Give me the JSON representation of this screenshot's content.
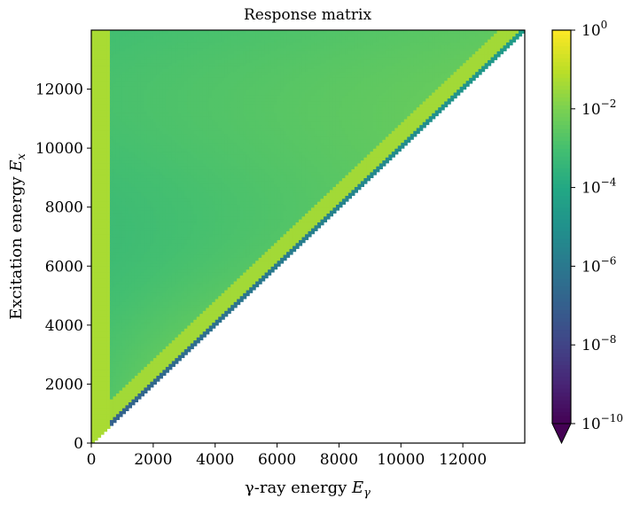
{
  "chart_data": {
    "type": "heatmap",
    "title": "Response matrix",
    "xlabel": "γ-ray energy Eγ",
    "ylabel": "Excitation energy Ex",
    "xlim": [
      0,
      14000
    ],
    "ylim": [
      0,
      14000
    ],
    "x_ticks": [
      0,
      2000,
      4000,
      6000,
      8000,
      10000,
      12000
    ],
    "x_tick_labels": [
      "0",
      "2000",
      "4000",
      "6000",
      "8000",
      "10000",
      "12000"
    ],
    "y_ticks": [
      0,
      2000,
      4000,
      6000,
      8000,
      10000,
      12000
    ],
    "y_tick_labels": [
      "0",
      "2000",
      "4000",
      "6000",
      "8000",
      "10000",
      "12000"
    ],
    "region": "Eγ ≤ Ex (lower-right triangle empty)",
    "colorbar": {
      "scale": "log",
      "colormap": "viridis",
      "range": [
        1e-10,
        1
      ],
      "extend": "min",
      "ticks": [
        {
          "exp": 0,
          "base": "10",
          "sup": "0"
        },
        {
          "exp": -2,
          "base": "10",
          "sup": "−2"
        },
        {
          "exp": -4,
          "base": "10",
          "sup": "−4"
        },
        {
          "exp": -6,
          "base": "10",
          "sup": "−6"
        },
        {
          "exp": -8,
          "base": "10",
          "sup": "−8"
        },
        {
          "exp": -10,
          "base": "10",
          "sup": "−10"
        }
      ]
    },
    "features": {
      "low_energy_band_x": [
        0,
        550
      ],
      "low_energy_band_value": 0.05,
      "bulk_value": 0.0008,
      "diagonal_value": 0.04,
      "diagonal_edge_value": 1e-07
    }
  }
}
